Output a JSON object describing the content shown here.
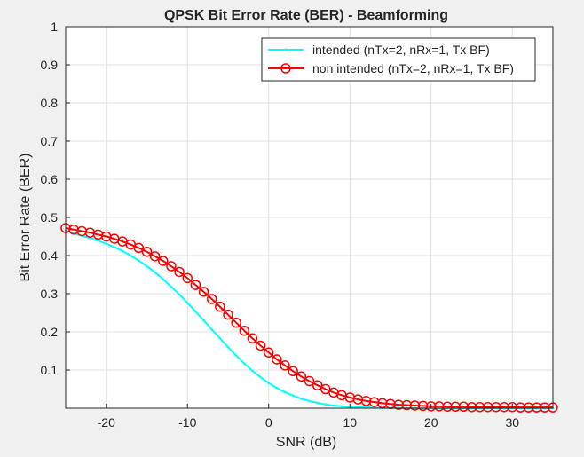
{
  "chart_data": {
    "type": "line",
    "title": "QPSK Bit Error Rate (BER) - Beamforming",
    "xlabel": "SNR (dB)",
    "ylabel": "Bit Error Rate (BER)",
    "xlim": [
      -25,
      35
    ],
    "ylim": [
      0,
      1
    ],
    "xticks": [
      -20,
      -10,
      0,
      10,
      20,
      30
    ],
    "yticks": [
      0.1,
      0.2,
      0.3,
      0.4,
      0.5,
      0.6,
      0.7,
      0.8,
      0.9,
      1
    ],
    "grid": true,
    "legend_position": "top-right",
    "x": [
      -25,
      -24,
      -23,
      -22,
      -21,
      -20,
      -19,
      -18,
      -17,
      -16,
      -15,
      -14,
      -13,
      -12,
      -11,
      -10,
      -9,
      -8,
      -7,
      -6,
      -5,
      -4,
      -3,
      -2,
      -1,
      0,
      1,
      2,
      3,
      4,
      5,
      6,
      7,
      8,
      9,
      10,
      11,
      12,
      13,
      14,
      15,
      16,
      17,
      18,
      19,
      20,
      21,
      22,
      23,
      24,
      25,
      26,
      27,
      28,
      29,
      30,
      31,
      32,
      33,
      34,
      35
    ],
    "series": [
      {
        "name": "intended (nTx=2, nRx=1, Tx BF)",
        "color": "#00ffff",
        "marker": "point",
        "values": [
          0.465,
          0.458,
          0.452,
          0.446,
          0.439,
          0.431,
          0.422,
          0.412,
          0.4,
          0.387,
          0.372,
          0.356,
          0.338,
          0.318,
          0.298,
          0.276,
          0.253,
          0.23,
          0.206,
          0.183,
          0.16,
          0.138,
          0.117,
          0.098,
          0.081,
          0.066,
          0.053,
          0.042,
          0.033,
          0.025,
          0.019,
          0.014,
          0.01,
          0.007,
          0.005,
          0.0035,
          0.0025,
          0.0017,
          0.0012,
          0.0008,
          0.0005,
          0.0003,
          0.0002,
          0.0001,
          0.0001,
          0,
          0,
          0,
          0,
          0,
          0,
          0,
          0,
          0,
          0,
          0,
          0,
          0,
          0,
          0,
          0
        ]
      },
      {
        "name": "non intended (nTx=2, nRx=1, Tx BF)",
        "color": "#ff0000",
        "marker": "circle",
        "values": [
          0.472,
          0.468,
          0.464,
          0.46,
          0.455,
          0.45,
          0.444,
          0.437,
          0.429,
          0.42,
          0.41,
          0.398,
          0.386,
          0.372,
          0.357,
          0.341,
          0.323,
          0.305,
          0.286,
          0.266,
          0.245,
          0.224,
          0.203,
          0.183,
          0.164,
          0.146,
          0.128,
          0.112,
          0.097,
          0.083,
          0.071,
          0.06,
          0.05,
          0.041,
          0.034,
          0.028,
          0.023,
          0.019,
          0.016,
          0.013,
          0.011,
          0.009,
          0.008,
          0.007,
          0.006,
          0.005,
          0.005,
          0.004,
          0.004,
          0.004,
          0.003,
          0.003,
          0.003,
          0.003,
          0.003,
          0.003,
          0.002,
          0.002,
          0.002,
          0.002,
          0.002
        ]
      }
    ]
  }
}
